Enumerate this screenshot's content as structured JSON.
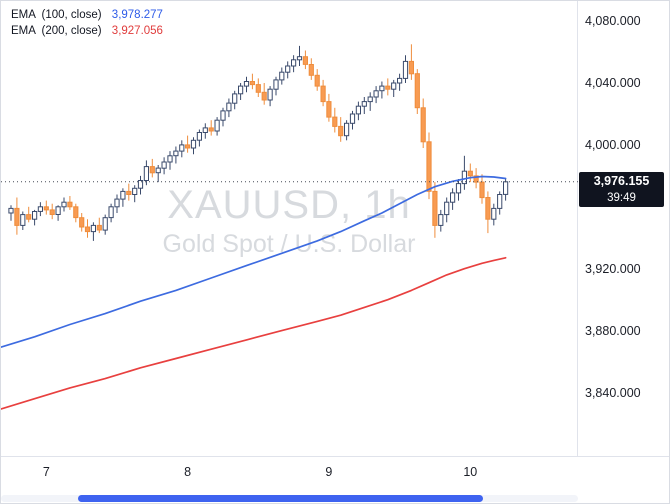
{
  "chart_data": {
    "type": "candlestick",
    "symbol": "XAUUSD",
    "timeframe": "1h",
    "description": "Gold Spot / U.S. Dollar",
    "watermark": {
      "line1": "XAUUSD, 1h",
      "line2": "Gold Spot / U.S. Dollar"
    },
    "legend": [
      {
        "name": "EMA",
        "params": "(100, close)",
        "value": "3,978.277",
        "color": "#2d5be8"
      },
      {
        "name": "EMA",
        "params": "(200, close)",
        "value": "3,927.056",
        "color": "#e03c3c"
      }
    ],
    "last_price": {
      "label": "3,976.155",
      "value": 3976.155,
      "countdown": "39:49"
    },
    "price_axis": {
      "visible_range": [
        3799,
        4093
      ],
      "ticks": [
        {
          "price": 4080,
          "label": "4,080.000"
        },
        {
          "price": 4040,
          "label": "4,040.000"
        },
        {
          "price": 4000,
          "label": "4,000.000"
        },
        {
          "price": 3920,
          "label": "3,920.000"
        },
        {
          "price": 3880,
          "label": "3,880.000"
        },
        {
          "price": 3840,
          "label": "3,840.000"
        }
      ]
    },
    "time_axis": {
      "visible_index_range": [
        -1.7,
        96.3
      ],
      "ticks": [
        {
          "label": "7",
          "index": 6
        },
        {
          "label": "8",
          "index": 30
        },
        {
          "label": "9",
          "index": 54
        },
        {
          "label": "10",
          "index": 78
        }
      ]
    },
    "colors": {
      "up_fill": "#ffffff",
      "up_border": "#3a4a6b",
      "down_fill": "#f89b52",
      "down_border": "#ef8d3c",
      "ema100": "#3d6be0",
      "ema200": "#e8403f",
      "last_price_bg": "#10141f",
      "last_price_line": "#454a56",
      "watermark": "#d7dade",
      "scrollbar": "#3e63f0"
    },
    "candles": [
      [
        3956,
        3961,
        3951,
        3959
      ],
      [
        3959,
        3966,
        3942,
        3948
      ],
      [
        3948,
        3957,
        3945,
        3955
      ],
      [
        3955,
        3960,
        3950,
        3952
      ],
      [
        3952,
        3958,
        3948,
        3957
      ],
      [
        3957,
        3963,
        3954,
        3960
      ],
      [
        3960,
        3964,
        3955,
        3958
      ],
      [
        3958,
        3962,
        3952,
        3955
      ],
      [
        3955,
        3961,
        3951,
        3960
      ],
      [
        3960,
        3966,
        3957,
        3963
      ],
      [
        3963,
        3967,
        3958,
        3960
      ],
      [
        3960,
        3962,
        3950,
        3953
      ],
      [
        3953,
        3956,
        3944,
        3947
      ],
      [
        3947,
        3952,
        3940,
        3944
      ],
      [
        3944,
        3950,
        3938,
        3948
      ],
      [
        3948,
        3953,
        3943,
        3945
      ],
      [
        3945,
        3955,
        3942,
        3953
      ],
      [
        3953,
        3962,
        3950,
        3960
      ],
      [
        3960,
        3968,
        3956,
        3965
      ],
      [
        3965,
        3972,
        3960,
        3970
      ],
      [
        3970,
        3975,
        3964,
        3968
      ],
      [
        3968,
        3974,
        3963,
        3972
      ],
      [
        3972,
        3980,
        3968,
        3977
      ],
      [
        3977,
        3990,
        3974,
        3986
      ],
      [
        3986,
        3991,
        3979,
        3982
      ],
      [
        3982,
        3987,
        3976,
        3985
      ],
      [
        3985,
        3992,
        3981,
        3989
      ],
      [
        3989,
        3996,
        3984,
        3993
      ],
      [
        3993,
        3999,
        3988,
        3996
      ],
      [
        3996,
        4003,
        3992,
        4000
      ],
      [
        4000,
        4006,
        3995,
        3998
      ],
      [
        3998,
        4005,
        3994,
        4003
      ],
      [
        4003,
        4010,
        3999,
        4008
      ],
      [
        4008,
        4014,
        4004,
        4011
      ],
      [
        4011,
        4016,
        4006,
        4009
      ],
      [
        4009,
        4018,
        4006,
        4016
      ],
      [
        4016,
        4024,
        4012,
        4022
      ],
      [
        4022,
        4030,
        4018,
        4027
      ],
      [
        4027,
        4035,
        4023,
        4033
      ],
      [
        4033,
        4040,
        4029,
        4038
      ],
      [
        4038,
        4044,
        4034,
        4041
      ],
      [
        4041,
        4046,
        4036,
        4039
      ],
      [
        4039,
        4043,
        4031,
        4034
      ],
      [
        4034,
        4040,
        4026,
        4029
      ],
      [
        4029,
        4038,
        4025,
        4036
      ],
      [
        4036,
        4044,
        4032,
        4042
      ],
      [
        4042,
        4050,
        4039,
        4047
      ],
      [
        4047,
        4054,
        4043,
        4051
      ],
      [
        4051,
        4058,
        4047,
        4055
      ],
      [
        4055,
        4064,
        4051,
        4057
      ],
      [
        4057,
        4061,
        4049,
        4052
      ],
      [
        4052,
        4056,
        4042,
        4045
      ],
      [
        4045,
        4049,
        4035,
        4038
      ],
      [
        4038,
        4042,
        4025,
        4028
      ],
      [
        4028,
        4033,
        4015,
        4018
      ],
      [
        4018,
        4024,
        4008,
        4012
      ],
      [
        4012,
        4018,
        4002,
        4006
      ],
      [
        4006,
        4016,
        4003,
        4014
      ],
      [
        4014,
        4022,
        4010,
        4020
      ],
      [
        4020,
        4028,
        4016,
        4025
      ],
      [
        4025,
        4031,
        4020,
        4028
      ],
      [
        4028,
        4034,
        4022,
        4031
      ],
      [
        4031,
        4038,
        4027,
        4035
      ],
      [
        4035,
        4041,
        4030,
        4038
      ],
      [
        4038,
        4043,
        4032,
        4036
      ],
      [
        4036,
        4042,
        4031,
        4040
      ],
      [
        4040,
        4046,
        4035,
        4043
      ],
      [
        4043,
        4058,
        4040,
        4054
      ],
      [
        4054,
        4065,
        4042,
        4046
      ],
      [
        4046,
        4049,
        4020,
        4024
      ],
      [
        4024,
        4030,
        3998,
        4002
      ],
      [
        4002,
        4008,
        3965,
        3970
      ],
      [
        3970,
        3976,
        3940,
        3948
      ],
      [
        3948,
        3958,
        3944,
        3955
      ],
      [
        3955,
        3966,
        3950,
        3963
      ],
      [
        3963,
        3972,
        3958,
        3969
      ],
      [
        3969,
        3978,
        3964,
        3975
      ],
      [
        3975,
        3993,
        3971,
        3983
      ],
      [
        3983,
        3988,
        3976,
        3980
      ],
      [
        3980,
        3985,
        3972,
        3976
      ],
      [
        3976,
        3981,
        3962,
        3966
      ],
      [
        3966,
        3970,
        3943,
        3952
      ],
      [
        3952,
        3962,
        3948,
        3959
      ],
      [
        3959,
        3970,
        3955,
        3968
      ],
      [
        3968,
        3978,
        3964,
        3976.155
      ]
    ],
    "overlays": [
      {
        "id": "ema-100-line",
        "name": "EMA 100",
        "color": "#3d6be0",
        "points": [
          [
            -2,
            3869
          ],
          [
            4,
            3876
          ],
          [
            10,
            3884
          ],
          [
            16,
            3891
          ],
          [
            22,
            3899
          ],
          [
            28,
            3906
          ],
          [
            34,
            3914
          ],
          [
            40,
            3922
          ],
          [
            46,
            3930
          ],
          [
            52,
            3938
          ],
          [
            56,
            3944
          ],
          [
            60,
            3951
          ],
          [
            63,
            3956
          ],
          [
            66,
            3962
          ],
          [
            69,
            3968
          ],
          [
            72,
            3973
          ],
          [
            75,
            3976.5
          ],
          [
            78,
            3978.8
          ],
          [
            80,
            3979.6
          ],
          [
            82,
            3979.3
          ],
          [
            84,
            3978.3
          ]
        ]
      },
      {
        "id": "ema-200-line",
        "name": "EMA 200",
        "color": "#e8403f",
        "points": [
          [
            -2,
            3829
          ],
          [
            4,
            3836
          ],
          [
            10,
            3843
          ],
          [
            16,
            3849
          ],
          [
            22,
            3856
          ],
          [
            28,
            3862
          ],
          [
            34,
            3868
          ],
          [
            40,
            3874
          ],
          [
            46,
            3880
          ],
          [
            52,
            3886
          ],
          [
            56,
            3890
          ],
          [
            60,
            3895
          ],
          [
            64,
            3900
          ],
          [
            68,
            3906
          ],
          [
            71,
            3911
          ],
          [
            74,
            3916
          ],
          [
            77,
            3920
          ],
          [
            80,
            3923.5
          ],
          [
            82,
            3925.4
          ],
          [
            84,
            3927.1
          ]
        ]
      }
    ]
  }
}
